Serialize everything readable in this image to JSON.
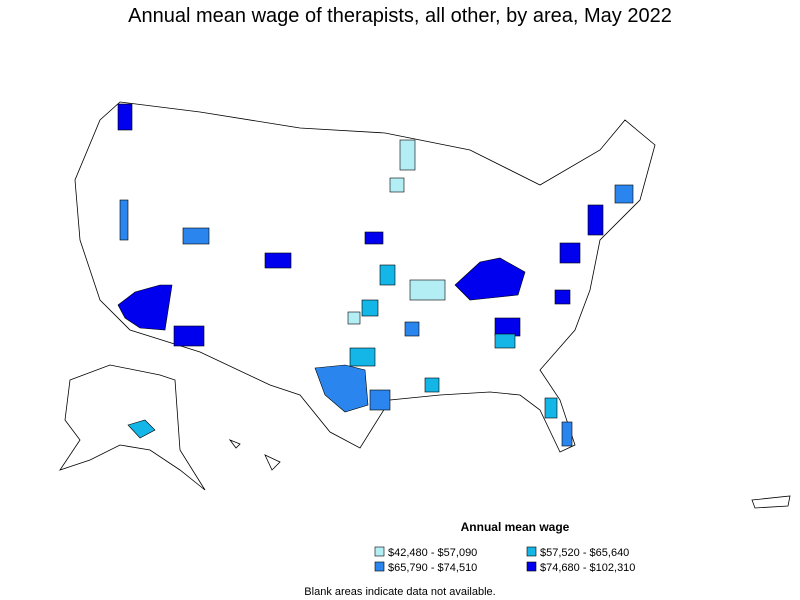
{
  "title": "Annual mean wage of therapists, all other, by area, May 2022",
  "legend": {
    "title": "Annual mean wage",
    "items": [
      {
        "label": "$42,480 - $57,090",
        "color": "#b3eef5"
      },
      {
        "label": "$57,520 - $65,640",
        "color": "#13b6e6"
      },
      {
        "label": "$65,790 - $74,510",
        "color": "#2a86ee"
      },
      {
        "label": "$74,680 - $102,310",
        "color": "#0000ee"
      }
    ]
  },
  "note": "Blank areas indicate data not available."
}
